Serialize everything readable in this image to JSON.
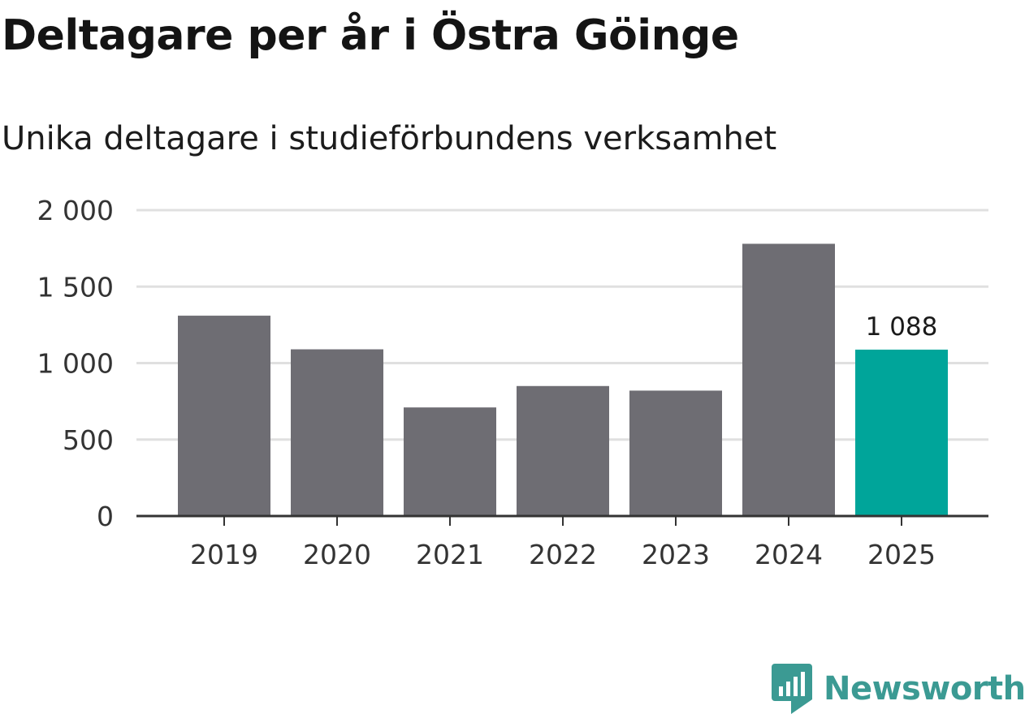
{
  "title": "Deltagare per år i Östra Göinge",
  "subtitle": "Unika deltagare i studieförbundens verksamhet",
  "brand": {
    "name": "Newsworthy",
    "icon": "newsworthy-logo-icon",
    "color": "#3b9a93"
  },
  "colors": {
    "bar": "#6e6d73",
    "highlight": "#00a59a",
    "grid": "#e0e0e0",
    "axis": "#333333"
  },
  "chart_data": {
    "type": "bar",
    "title": "Deltagare per år i Östra Göinge",
    "subtitle": "Unika deltagare i studieförbundens verksamhet",
    "categories": [
      "2019",
      "2020",
      "2021",
      "2022",
      "2023",
      "2024",
      "2025"
    ],
    "values": [
      1310,
      1090,
      710,
      850,
      820,
      1780,
      1088
    ],
    "highlight_index": 6,
    "data_labels": [
      {
        "index": 6,
        "text": "1 088"
      }
    ],
    "ylim": [
      0,
      2000
    ],
    "yticks": [
      0,
      500,
      1000,
      1500,
      2000
    ],
    "ytick_labels": [
      "0",
      "500",
      "1 000",
      "1 500",
      "2 000"
    ],
    "xlabel": "",
    "ylabel": "",
    "grid": true,
    "legend": "none"
  }
}
